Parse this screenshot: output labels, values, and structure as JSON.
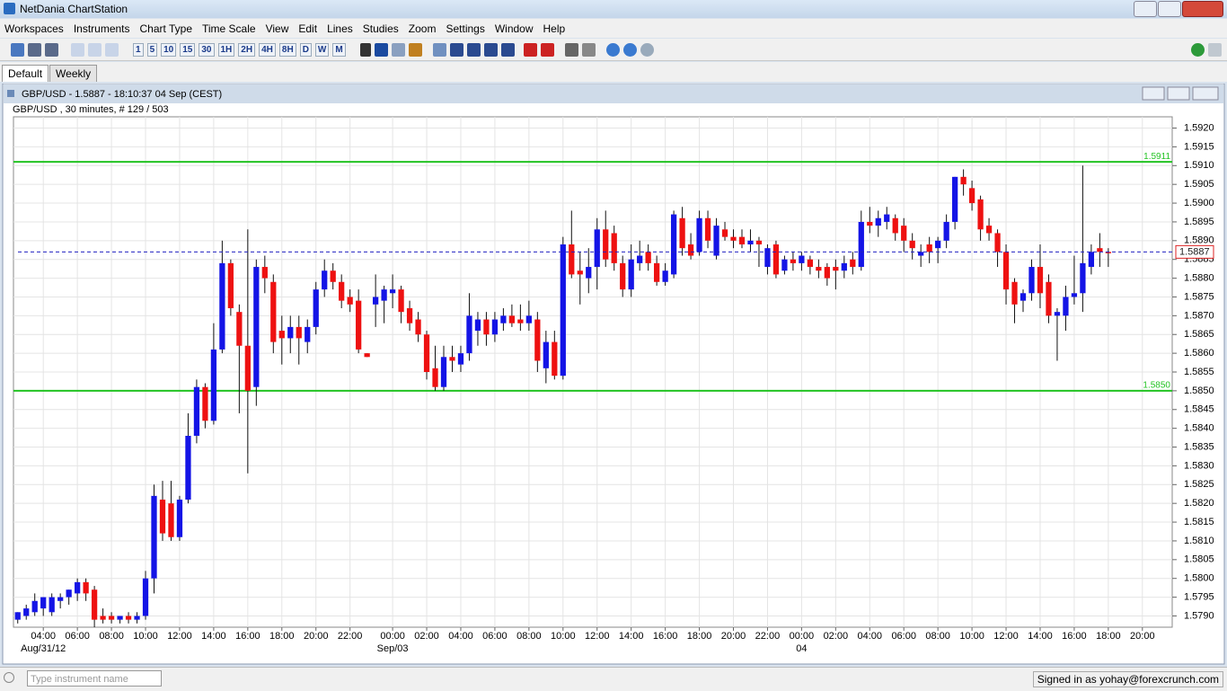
{
  "window": {
    "title": "NetDania ChartStation"
  },
  "menu": [
    "Workspaces",
    "Instruments",
    "Chart Type",
    "Time Scale",
    "View",
    "Edit",
    "Lines",
    "Studies",
    "Zoom",
    "Settings",
    "Window",
    "Help"
  ],
  "toolbar": {
    "timeframes": [
      "1",
      "5",
      "10",
      "15",
      "30",
      "1H",
      "2H",
      "4H",
      "8H",
      "D",
      "W",
      "M"
    ]
  },
  "tabs": [
    "Default",
    "Weekly"
  ],
  "chart_window": {
    "title": "GBP/USD - 1.5887 - 18:10:37  04 Sep (CEST)"
  },
  "chart_data": {
    "type": "candlestick",
    "subtitle": "GBP/USD , 30 minutes, # 129 / 503",
    "up_color": "#1414e6",
    "down_color": "#ee1111",
    "candles": [
      [
        1.5789,
        1.5791,
        1.5788,
        1.5791
      ],
      [
        1.579,
        1.5793,
        1.5789,
        1.5792
      ],
      [
        1.5791,
        1.5796,
        1.579,
        1.5794
      ],
      [
        1.5792,
        1.5795,
        1.579,
        1.5795
      ],
      [
        1.5791,
        1.5796,
        1.579,
        1.5795
      ],
      [
        1.5794,
        1.5796,
        1.5792,
        1.5795
      ],
      [
        1.5795,
        1.5797,
        1.5793,
        1.5797
      ],
      [
        1.5796,
        1.58,
        1.5794,
        1.5799
      ],
      [
        1.5799,
        1.58,
        1.5794,
        1.5796
      ],
      [
        1.5797,
        1.5798,
        1.5787,
        1.5789
      ],
      [
        1.579,
        1.5792,
        1.5788,
        1.5789
      ],
      [
        1.579,
        1.5791,
        1.5788,
        1.5789
      ],
      [
        1.5789,
        1.579,
        1.5788,
        1.579
      ],
      [
        1.579,
        1.5791,
        1.5788,
        1.5789
      ],
      [
        1.5789,
        1.5791,
        1.5788,
        1.579
      ],
      [
        1.579,
        1.5802,
        1.5789,
        1.58
      ],
      [
        1.58,
        1.5825,
        1.5796,
        1.5822
      ],
      [
        1.5821,
        1.5826,
        1.581,
        1.5812
      ],
      [
        1.582,
        1.5826,
        1.581,
        1.5811
      ],
      [
        1.5811,
        1.5822,
        1.581,
        1.5821
      ],
      [
        1.5821,
        1.5844,
        1.582,
        1.5838
      ],
      [
        1.5838,
        1.5853,
        1.5836,
        1.5851
      ],
      [
        1.5851,
        1.5852,
        1.584,
        1.5842
      ],
      [
        1.5842,
        1.5868,
        1.5841,
        1.5861
      ],
      [
        1.5861,
        1.589,
        1.586,
        1.5884
      ],
      [
        1.5884,
        1.5885,
        1.587,
        1.5872
      ],
      [
        1.5871,
        1.5873,
        1.5844,
        1.5862
      ],
      [
        1.5862,
        1.5893,
        1.5828,
        1.585
      ],
      [
        1.5851,
        1.5885,
        1.5846,
        1.5883
      ],
      [
        1.5883,
        1.5886,
        1.5876,
        1.588
      ],
      [
        1.5879,
        1.5881,
        1.586,
        1.5863
      ],
      [
        1.5866,
        1.587,
        1.5857,
        1.5864
      ],
      [
        1.5864,
        1.587,
        1.586,
        1.5867
      ],
      [
        1.5867,
        1.587,
        1.5857,
        1.5864
      ],
      [
        1.5863,
        1.5869,
        1.586,
        1.5867
      ],
      [
        1.5867,
        1.5879,
        1.5865,
        1.5877
      ],
      [
        1.5877,
        1.5885,
        1.5875,
        1.5882
      ],
      [
        1.5882,
        1.5884,
        1.5877,
        1.5879
      ],
      [
        1.5879,
        1.5881,
        1.5872,
        1.5874
      ],
      [
        1.5875,
        1.5877,
        1.5871,
        1.5873
      ],
      [
        1.5874,
        1.5877,
        1.586,
        1.5861
      ],
      [
        1.586,
        1.586,
        1.5859,
        1.5859
      ],
      [
        1.5873,
        1.5881,
        1.5867,
        1.5875
      ],
      [
        1.5874,
        1.5878,
        1.5868,
        1.5877
      ],
      [
        1.5876,
        1.5881,
        1.5872,
        1.5877
      ],
      [
        1.5877,
        1.5878,
        1.5868,
        1.5871
      ],
      [
        1.5872,
        1.5874,
        1.5866,
        1.5868
      ],
      [
        1.5869,
        1.5871,
        1.5863,
        1.5865
      ],
      [
        1.5865,
        1.5866,
        1.5853,
        1.5855
      ],
      [
        1.5856,
        1.5862,
        1.585,
        1.5851
      ],
      [
        1.5851,
        1.5862,
        1.585,
        1.5859
      ],
      [
        1.5859,
        1.5862,
        1.5855,
        1.5858
      ],
      [
        1.5857,
        1.5862,
        1.5855,
        1.586
      ],
      [
        1.586,
        1.5876,
        1.5858,
        1.587
      ],
      [
        1.5866,
        1.5871,
        1.5862,
        1.5869
      ],
      [
        1.5869,
        1.5871,
        1.5862,
        1.5865
      ],
      [
        1.5865,
        1.5871,
        1.5863,
        1.5869
      ],
      [
        1.5868,
        1.5872,
        1.5866,
        1.587
      ],
      [
        1.587,
        1.5873,
        1.5867,
        1.5868
      ],
      [
        1.5869,
        1.5873,
        1.5866,
        1.5868
      ],
      [
        1.5868,
        1.5874,
        1.5866,
        1.587
      ],
      [
        1.5869,
        1.5871,
        1.5855,
        1.5858
      ],
      [
        1.5856,
        1.5866,
        1.5852,
        1.5863
      ],
      [
        1.5863,
        1.5866,
        1.5853,
        1.5854
      ],
      [
        1.5854,
        1.5891,
        1.5853,
        1.5889
      ],
      [
        1.5889,
        1.5898,
        1.588,
        1.5881
      ],
      [
        1.5882,
        1.5887,
        1.5873,
        1.5881
      ],
      [
        1.588,
        1.5888,
        1.5876,
        1.5883
      ],
      [
        1.5883,
        1.5896,
        1.5877,
        1.5893
      ],
      [
        1.5893,
        1.5898,
        1.5883,
        1.5885
      ],
      [
        1.5892,
        1.5894,
        1.5882,
        1.5884
      ],
      [
        1.5884,
        1.5886,
        1.5875,
        1.5877
      ],
      [
        1.5877,
        1.5889,
        1.5875,
        1.5885
      ],
      [
        1.5884,
        1.589,
        1.5882,
        1.5886
      ],
      [
        1.5887,
        1.5889,
        1.5882,
        1.5884
      ],
      [
        1.5884,
        1.5886,
        1.5878,
        1.5879
      ],
      [
        1.5879,
        1.5884,
        1.5878,
        1.5882
      ],
      [
        1.5881,
        1.5898,
        1.588,
        1.5897
      ],
      [
        1.5896,
        1.5899,
        1.5886,
        1.5888
      ],
      [
        1.5889,
        1.5892,
        1.5885,
        1.5886
      ],
      [
        1.5887,
        1.5898,
        1.5886,
        1.5896
      ],
      [
        1.5896,
        1.5898,
        1.5888,
        1.589
      ],
      [
        1.5886,
        1.5896,
        1.5885,
        1.5894
      ],
      [
        1.5893,
        1.5895,
        1.589,
        1.5891
      ],
      [
        1.5891,
        1.5893,
        1.5888,
        1.589
      ],
      [
        1.5891,
        1.5893,
        1.5888,
        1.5889
      ],
      [
        1.5889,
        1.5893,
        1.5887,
        1.589
      ],
      [
        1.589,
        1.5891,
        1.5883,
        1.5889
      ],
      [
        1.5883,
        1.5889,
        1.5881,
        1.5888
      ],
      [
        1.5889,
        1.589,
        1.588,
        1.5881
      ],
      [
        1.5882,
        1.5886,
        1.5881,
        1.5885
      ],
      [
        1.5885,
        1.5887,
        1.5882,
        1.5884
      ],
      [
        1.5884,
        1.5887,
        1.5882,
        1.5886
      ],
      [
        1.5885,
        1.5886,
        1.5881,
        1.5883
      ],
      [
        1.5883,
        1.5885,
        1.588,
        1.5882
      ],
      [
        1.5883,
        1.5884,
        1.5878,
        1.588
      ],
      [
        1.5883,
        1.5885,
        1.5877,
        1.5882
      ],
      [
        1.5882,
        1.5886,
        1.588,
        1.5884
      ],
      [
        1.5885,
        1.5887,
        1.5881,
        1.5883
      ],
      [
        1.5883,
        1.5898,
        1.5882,
        1.5895
      ],
      [
        1.5895,
        1.5899,
        1.5892,
        1.5894
      ],
      [
        1.5894,
        1.5898,
        1.5891,
        1.5896
      ],
      [
        1.5895,
        1.5899,
        1.5893,
        1.5897
      ],
      [
        1.5896,
        1.5897,
        1.589,
        1.5892
      ],
      [
        1.5894,
        1.5896,
        1.5887,
        1.589
      ],
      [
        1.589,
        1.5892,
        1.5885,
        1.5888
      ],
      [
        1.5886,
        1.5889,
        1.5883,
        1.5887
      ],
      [
        1.5889,
        1.5891,
        1.5884,
        1.5887
      ],
      [
        1.5888,
        1.5891,
        1.5884,
        1.589
      ],
      [
        1.589,
        1.5897,
        1.5888,
        1.5895
      ],
      [
        1.5895,
        1.5907,
        1.5893,
        1.5907
      ],
      [
        1.5907,
        1.5909,
        1.5902,
        1.5905
      ],
      [
        1.5904,
        1.5906,
        1.5898,
        1.59
      ],
      [
        1.5901,
        1.5902,
        1.589,
        1.5893
      ],
      [
        1.5894,
        1.5896,
        1.589,
        1.5892
      ],
      [
        1.5892,
        1.5893,
        1.5883,
        1.5887
      ],
      [
        1.5887,
        1.5889,
        1.5873,
        1.5877
      ],
      [
        1.5879,
        1.588,
        1.5868,
        1.5873
      ],
      [
        1.5874,
        1.5877,
        1.5871,
        1.5876
      ],
      [
        1.5876,
        1.5885,
        1.5874,
        1.5883
      ],
      [
        1.5883,
        1.5889,
        1.5872,
        1.5876
      ],
      [
        1.5879,
        1.5881,
        1.5868,
        1.587
      ],
      [
        1.587,
        1.5872,
        1.5858,
        1.5871
      ],
      [
        1.587,
        1.5878,
        1.5866,
        1.5875
      ],
      [
        1.5875,
        1.5886,
        1.5873,
        1.5876
      ],
      [
        1.5876,
        1.591,
        1.5871,
        1.5884
      ],
      [
        1.5883,
        1.5889,
        1.5881,
        1.5887
      ],
      [
        1.5888,
        1.5892,
        1.5883,
        1.5887
      ],
      [
        1.5887,
        1.5888,
        1.5883,
        1.5887
      ]
    ],
    "xlim": [
      -0.5,
      135.5
    ],
    "ylim": [
      1.5787,
      1.5923
    ],
    "xticks": [
      {
        "value": 3,
        "label": "04:00"
      },
      {
        "value": 7,
        "label": "06:00"
      },
      {
        "value": 11,
        "label": "08:00"
      },
      {
        "value": 15,
        "label": "10:00"
      },
      {
        "value": 19,
        "label": "12:00"
      },
      {
        "value": 23,
        "label": "14:00"
      },
      {
        "value": 27,
        "label": "16:00"
      },
      {
        "value": 31,
        "label": "18:00"
      },
      {
        "value": 35,
        "label": "20:00"
      },
      {
        "value": 39,
        "label": "22:00"
      },
      {
        "value": 44,
        "label": "00:00"
      },
      {
        "value": 48,
        "label": "02:00"
      },
      {
        "value": 52,
        "label": "04:00"
      },
      {
        "value": 56,
        "label": "06:00"
      },
      {
        "value": 60,
        "label": "08:00"
      },
      {
        "value": 64,
        "label": "10:00"
      },
      {
        "value": 68,
        "label": "12:00"
      },
      {
        "value": 72,
        "label": "14:00"
      },
      {
        "value": 76,
        "label": "16:00"
      },
      {
        "value": 80,
        "label": "18:00"
      },
      {
        "value": 84,
        "label": "20:00"
      },
      {
        "value": 88,
        "label": "22:00"
      },
      {
        "value": 92,
        "label": "00:00"
      },
      {
        "value": 96,
        "label": "02:00"
      },
      {
        "value": 100,
        "label": "04:00"
      },
      {
        "value": 104,
        "label": "06:00"
      },
      {
        "value": 108,
        "label": "08:00"
      },
      {
        "value": 112,
        "label": "10:00"
      },
      {
        "value": 116,
        "label": "12:00"
      },
      {
        "value": 120,
        "label": "14:00"
      },
      {
        "value": 124,
        "label": "16:00"
      },
      {
        "value": 128,
        "label": "18:00"
      },
      {
        "value": 132,
        "label": "20:00"
      }
    ],
    "date_labels": [
      {
        "value": 3,
        "label": "Aug/31/12"
      },
      {
        "value": 44,
        "label": "Sep/03"
      },
      {
        "value": 92,
        "label": "04"
      }
    ],
    "yticks": [
      {
        "value": 1.579,
        "label": "1.5790"
      },
      1.5795,
      {
        "value": 1.58,
        "label": "1.5800"
      },
      1.5805,
      {
        "value": 1.581,
        "label": "1.5810"
      },
      1.5815,
      {
        "value": 1.582,
        "label": "1.5820"
      },
      1.5825,
      {
        "value": 1.583,
        "label": "1.5830"
      },
      1.5835,
      {
        "value": 1.584,
        "label": "1.5840"
      },
      1.5845,
      {
        "value": 1.585,
        "label": "1.5850"
      },
      1.5855,
      {
        "value": 1.586,
        "label": "1.5860"
      },
      1.5865,
      {
        "value": 1.587,
        "label": "1.5870"
      },
      1.5875,
      {
        "value": 1.588,
        "label": "1.5880"
      },
      1.5885,
      {
        "value": 1.589,
        "label": "1.5890"
      },
      1.5895,
      {
        "value": 1.59,
        "label": "1.5900"
      },
      1.5905,
      {
        "value": 1.591,
        "label": "1.5910"
      },
      1.5915,
      {
        "value": 1.592,
        "label": "1.5920"
      }
    ],
    "grid": true,
    "levels": [
      {
        "value": 1.5911,
        "color": "#22c322"
      },
      {
        "value": 1.585,
        "label": "1.5850",
        "color": "#22c322"
      }
    ],
    "last_price": {
      "value": 1.5887,
      "color": "#2020c0"
    }
  },
  "status": {
    "search_placeholder": "Type instrument name",
    "signed_in": "Signed in as yohay@forexcrunch.com"
  }
}
